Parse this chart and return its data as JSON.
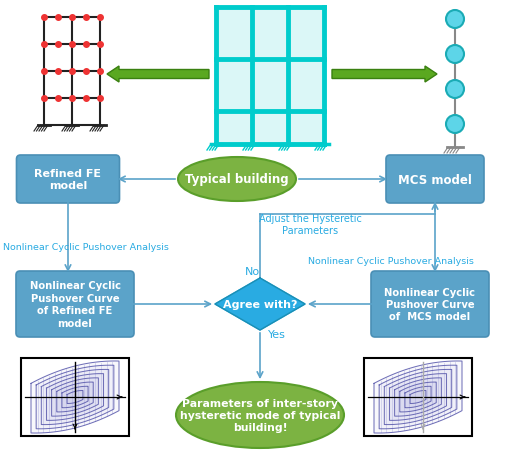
{
  "fig_width": 5.29,
  "fig_height": 4.6,
  "dpi": 100,
  "bg_color": "#ffffff",
  "blue_box_color": "#5BA3C9",
  "blue_box_edge": "#4A8FB5",
  "green_oval_color": "#7CB342",
  "green_oval_edge": "#5A9E2A",
  "diamond_color": "#29ABE2",
  "diamond_edge": "#1A8FB5",
  "arrow_blue": "#5BA3C9",
  "arrow_green": "#5AA820",
  "text_white": "#ffffff",
  "text_blue_label": "#29ABE2",
  "grid_dark": "#222222",
  "grid_cyan": "#00CCCC",
  "red_dot": "#EE3333",
  "hysteresis_line": "#5555AA",
  "hysteresis_fill": "#AAAADD",
  "typical_building_text": "Typical building",
  "refined_fe_text": "Refined FE\nmodel",
  "mcs_text": "MCS model",
  "nonlinear_curve_fe": "Nonlinear Cyclic\nPushover Curve\nof Refined FE\nmodel",
  "nonlinear_curve_mcs": "Nonlinear Cyclic\nPushover Curve\nof  MCS model",
  "agree_text": "Agree with?",
  "yes_text": "Yes",
  "no_text": "No",
  "adjust_text": "Adjust the Hysteretic\nParameters",
  "ncpa_left": "Nonlinear Cyclic Pushover Analysis",
  "ncpa_right": "Nonlinear Cyclic Pushover Analysis",
  "params_text": "Parameters of inter-story\nhysteretic mode of typical\nbuilding!"
}
